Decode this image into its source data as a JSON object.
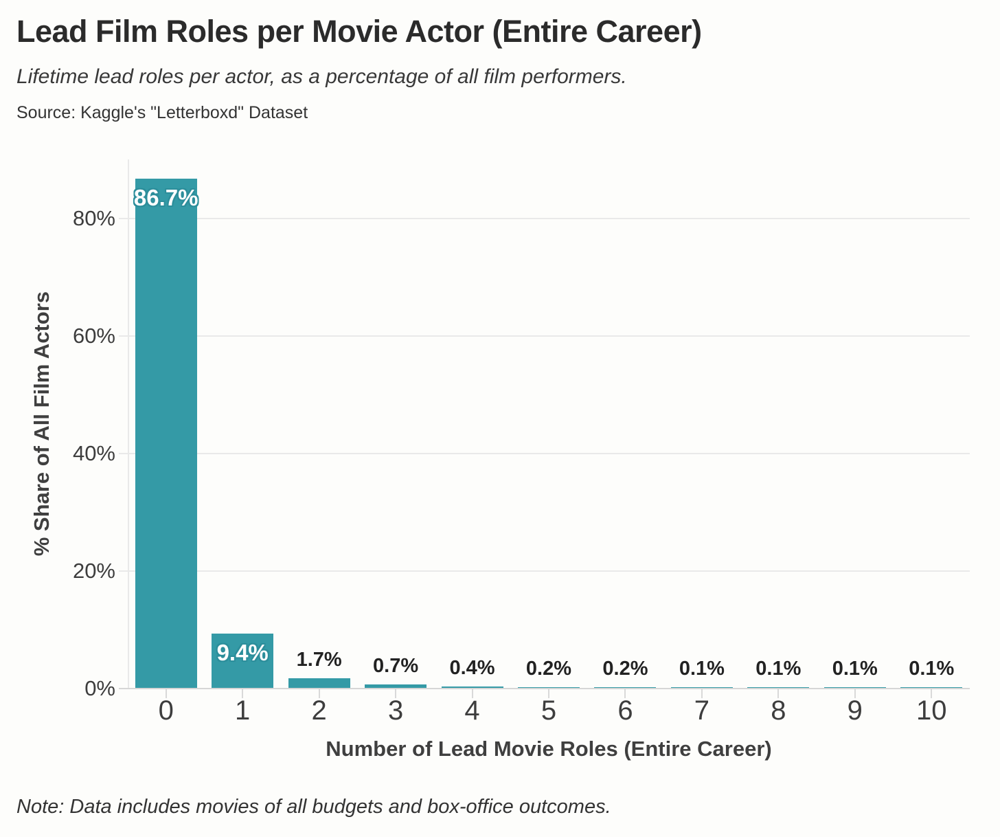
{
  "header": {
    "title": "Lead Film Roles per Movie Actor (Entire Career)",
    "subtitle": "Lifetime lead roles per actor, as a percentage of all film performers.",
    "source": "Source: Kaggle's \"Letterboxd\" Dataset"
  },
  "footer": {
    "note": "Note: Data includes movies of all budgets and box-office outcomes."
  },
  "chart_data": {
    "type": "bar",
    "title": "Lead Film Roles per Movie Actor (Entire Career)",
    "subtitle": "Lifetime lead roles per actor, as a percentage of all film performers.",
    "source": "Source: Kaggle's \"Letterboxd\" Dataset",
    "note": "Note: Data includes movies of all budgets and box-office outcomes.",
    "xlabel": "Number of Lead Movie Roles (Entire Career)",
    "ylabel": "% Share of All Film Actors",
    "categories": [
      "0",
      "1",
      "2",
      "3",
      "4",
      "5",
      "6",
      "7",
      "8",
      "9",
      "10"
    ],
    "values": [
      86.7,
      9.4,
      1.7,
      0.7,
      0.4,
      0.2,
      0.2,
      0.1,
      0.1,
      0.1,
      0.1
    ],
    "value_labels": [
      "86.7%",
      "9.4%",
      "1.7%",
      "0.7%",
      "0.4%",
      "0.2%",
      "0.2%",
      "0.1%",
      "0.1%",
      "0.1%",
      "0.1%"
    ],
    "yticks": [
      0,
      20,
      40,
      60,
      80
    ],
    "ytick_labels": [
      "0%",
      "20%",
      "40%",
      "60%",
      "80%"
    ],
    "ylim": [
      0,
      90
    ],
    "grid": "horizontal",
    "legend": "none",
    "colors": {
      "bar": "#349aa6",
      "bar_label_halo": "#2c8e9b",
      "grid": "#e9e9e9",
      "baseline": "#d6d6d6",
      "tick_text": "#3d3d3d",
      "background": "#fdfdfb"
    }
  }
}
